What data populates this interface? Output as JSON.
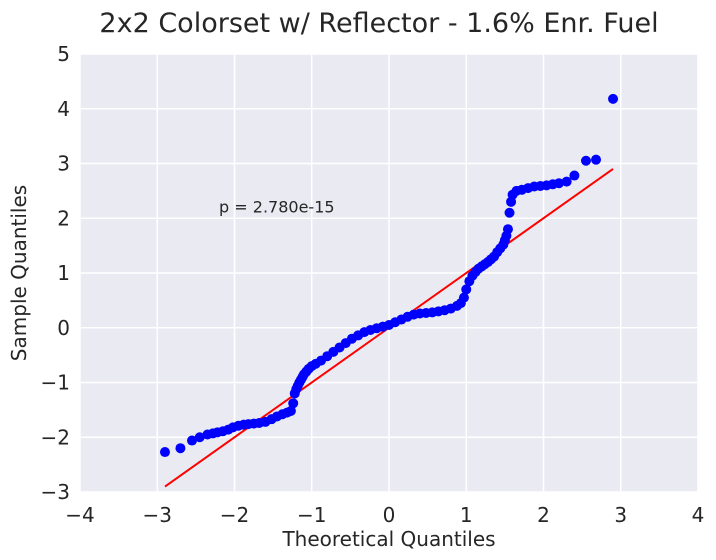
{
  "chart_data": {
    "type": "scatter",
    "title": "2x2 Colorset w/ Reflector - 1.6% Enr. Fuel",
    "xlabel": "Theoretical Quantiles",
    "ylabel": "Sample Quantiles",
    "xlim": [
      -4,
      4
    ],
    "ylim": [
      -3,
      5
    ],
    "xticks": [
      "−4",
      "−3",
      "−2",
      "−1",
      "0",
      "1",
      "2",
      "3",
      "4"
    ],
    "yticks": [
      "−3",
      "−2",
      "−1",
      "0",
      "1",
      "2",
      "3",
      "4",
      "5"
    ],
    "grid": true,
    "annotation": {
      "text": "p = 2.780e-15",
      "x": -2.2,
      "y": 2.2
    },
    "reference_line": {
      "x": [
        -2.9,
        2.9
      ],
      "y": [
        -2.9,
        2.9
      ],
      "color": "#ff0000"
    },
    "points_color": "#0000ff",
    "background": "#eaeaf2",
    "series": [
      {
        "x": [
          -2.9,
          -2.7,
          -2.55,
          -2.45,
          -2.35,
          -2.28,
          -2.22,
          -2.15,
          -2.08,
          -2.02,
          -1.95,
          -1.88,
          -1.82,
          -1.75,
          -1.68,
          -1.6,
          -1.52,
          -1.45,
          -1.38,
          -1.32,
          -1.27,
          -1.24,
          -1.22,
          -1.2,
          -1.18,
          -1.16,
          -1.14,
          -1.12,
          -1.1,
          -1.07,
          -1.04,
          -1.0,
          -0.95,
          -0.88,
          -0.8,
          -0.72,
          -0.64,
          -0.56,
          -0.48,
          -0.4,
          -0.32,
          -0.24,
          -0.16,
          -0.08,
          0.0,
          0.08,
          0.16,
          0.24,
          0.32,
          0.4,
          0.48,
          0.56,
          0.64,
          0.72,
          0.8,
          0.88,
          0.93,
          0.97,
          1.0,
          1.04,
          1.08,
          1.12,
          1.16,
          1.2,
          1.24,
          1.28,
          1.32,
          1.36,
          1.4,
          1.44,
          1.48,
          1.5,
          1.52,
          1.54,
          1.56,
          1.58,
          1.6,
          1.65,
          1.72,
          1.8,
          1.88,
          1.96,
          2.04,
          2.12,
          2.2,
          2.3,
          2.4,
          2.55,
          2.68,
          2.9
        ],
        "y": [
          -2.27,
          -2.2,
          -2.06,
          -2.0,
          -1.95,
          -1.93,
          -1.91,
          -1.89,
          -1.86,
          -1.82,
          -1.79,
          -1.77,
          -1.76,
          -1.75,
          -1.74,
          -1.72,
          -1.67,
          -1.62,
          -1.58,
          -1.55,
          -1.52,
          -1.38,
          -1.2,
          -1.12,
          -1.06,
          -1.0,
          -0.95,
          -0.9,
          -0.85,
          -0.8,
          -0.75,
          -0.7,
          -0.66,
          -0.6,
          -0.52,
          -0.44,
          -0.36,
          -0.28,
          -0.2,
          -0.14,
          -0.08,
          -0.04,
          -0.01,
          0.02,
          0.05,
          0.1,
          0.15,
          0.2,
          0.24,
          0.26,
          0.27,
          0.28,
          0.3,
          0.32,
          0.35,
          0.4,
          0.45,
          0.55,
          0.7,
          0.85,
          0.95,
          1.02,
          1.08,
          1.12,
          1.16,
          1.2,
          1.25,
          1.3,
          1.38,
          1.45,
          1.52,
          1.6,
          1.68,
          1.8,
          2.1,
          2.3,
          2.43,
          2.5,
          2.52,
          2.55,
          2.58,
          2.59,
          2.6,
          2.62,
          2.64,
          2.67,
          2.78,
          3.05,
          3.07,
          4.18
        ]
      }
    ]
  }
}
